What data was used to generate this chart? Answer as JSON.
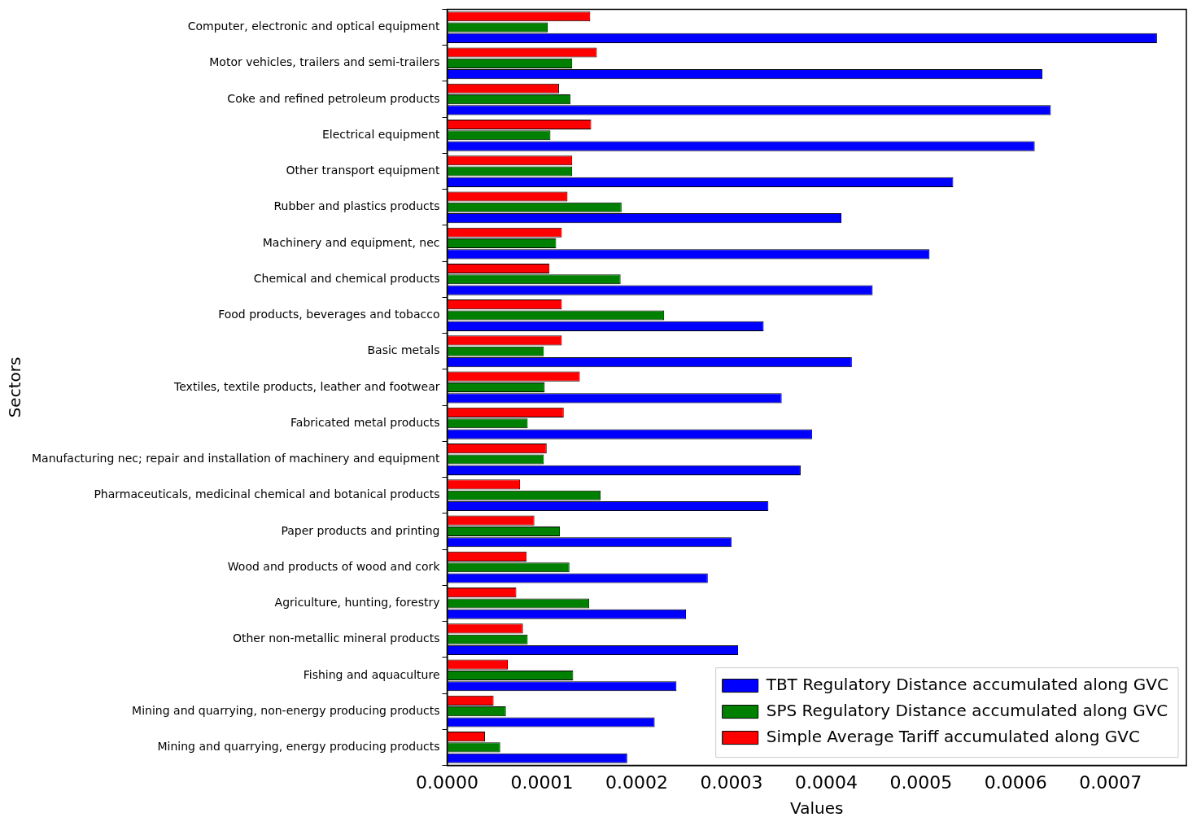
{
  "chart_data": {
    "type": "bar",
    "orientation": "horizontal",
    "xlabel": "Values",
    "ylabel": "Sectors",
    "legend": "bottom right",
    "categories": [
      "Computer, electronic and optical equipment",
      "Motor vehicles, trailers and semi-trailers",
      "Coke and refined petroleum products",
      "Electrical equipment",
      "Other transport equipment",
      "Rubber and plastics products",
      "Machinery and equipment, nec",
      "Chemical and chemical products",
      "Food products, beverages and tobacco",
      "Basic metals",
      "Textiles, textile products, leather and footwear",
      "Fabricated metal products",
      "Manufacturing nec; repair and installation of machinery and equipment",
      "Pharmaceuticals, medicinal chemical and botanical products",
      "Paper products and printing",
      "Wood and products of wood and cork",
      "Agriculture, hunting, forestry",
      "Other non-metallic mineral products",
      "Fishing and aquaculture",
      "Mining and quarrying, non-energy producing products",
      "Mining and quarrying, energy producing products"
    ],
    "series": [
      {
        "name": "TBT Regulatory Distance accumulated along GVC",
        "color": "#0000ff",
        "values": [
          0.000749,
          0.000628,
          0.000637,
          0.00062,
          0.000534,
          0.000416,
          0.000509,
          0.000449,
          0.000334,
          0.000427,
          0.000353,
          0.000385,
          0.000373,
          0.000339,
          0.0003,
          0.000275,
          0.000252,
          0.000307,
          0.000242,
          0.000219,
          0.00019
        ]
      },
      {
        "name": "SPS Regulatory Distance accumulated along GVC",
        "color": "#008000",
        "values": [
          0.000106,
          0.000132,
          0.00013,
          0.000109,
          0.000132,
          0.000184,
          0.000115,
          0.000183,
          0.000229,
          0.000102,
          0.000103,
          8.5e-05,
          0.000102,
          0.000162,
          0.000119,
          0.000129,
          0.00015,
          8.5e-05,
          0.000133,
          6.2e-05,
          5.6e-05
        ]
      },
      {
        "name": "Simple Average Tariff accumulated along GVC",
        "color": "#ff0000",
        "values": [
          0.000151,
          0.000158,
          0.000118,
          0.000152,
          0.000132,
          0.000127,
          0.000121,
          0.000108,
          0.000121,
          0.000121,
          0.00014,
          0.000123,
          0.000105,
          7.7e-05,
          9.2e-05,
          8.4e-05,
          7.3e-05,
          8e-05,
          6.4e-05,
          4.9e-05,
          4e-05
        ]
      }
    ],
    "xlim": [
      0,
      0.00078
    ],
    "xticks": [
      {
        "value": 0,
        "label": "0.0000"
      },
      {
        "value": 0.0001,
        "label": "0.0001"
      },
      {
        "value": 0.0002,
        "label": "0.0002"
      },
      {
        "value": 0.0003,
        "label": "0.0003"
      },
      {
        "value": 0.0004,
        "label": "0.0004"
      },
      {
        "value": 0.0005,
        "label": "0.0005"
      },
      {
        "value": 0.0006,
        "label": "0.0006"
      },
      {
        "value": 0.0007,
        "label": "0.0007"
      }
    ]
  }
}
